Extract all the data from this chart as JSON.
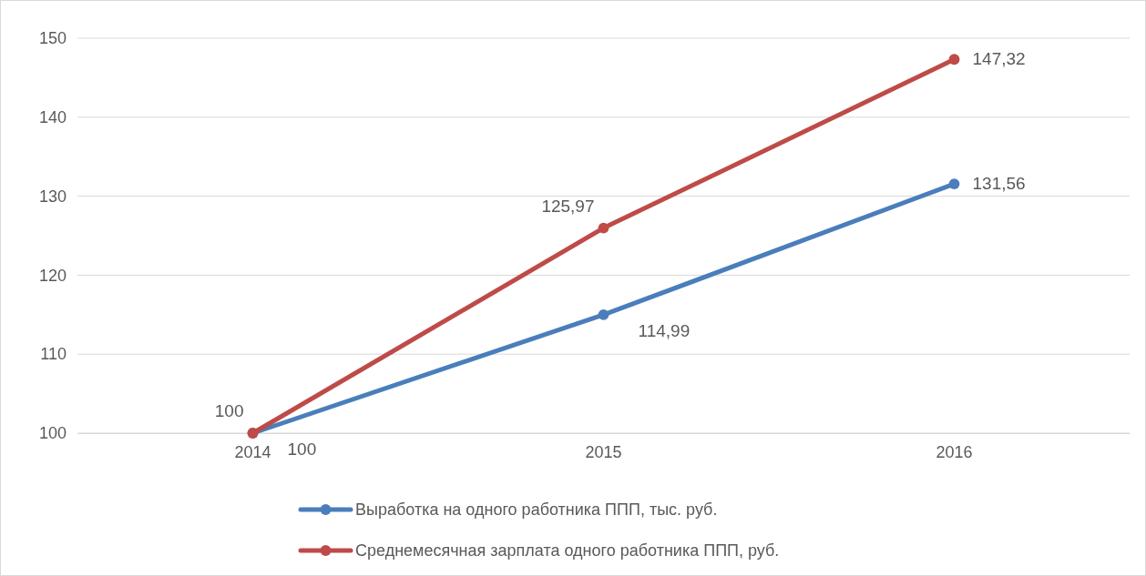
{
  "chart_data": {
    "type": "line",
    "categories": [
      "2014",
      "2015",
      "2016"
    ],
    "series": [
      {
        "name": "Выработка на одного работника ППП, тыс. руб.",
        "color": "#4a7ebb",
        "values": [
          100,
          114.99,
          131.56
        ],
        "value_labels": [
          "100",
          "114,99",
          "131,56"
        ]
      },
      {
        "name": "Среднемесячная зарплата одного работника ППП, руб.",
        "color": "#be4b48",
        "values": [
          100,
          125.97,
          147.32
        ],
        "value_labels": [
          "100",
          "125,97",
          "147,32"
        ]
      }
    ],
    "ylim": [
      100,
      150
    ],
    "yticks": [
      100,
      110,
      120,
      130,
      140,
      150
    ],
    "grid": "y",
    "legend": "bottom",
    "marker": "circle",
    "line_style": "solid"
  }
}
